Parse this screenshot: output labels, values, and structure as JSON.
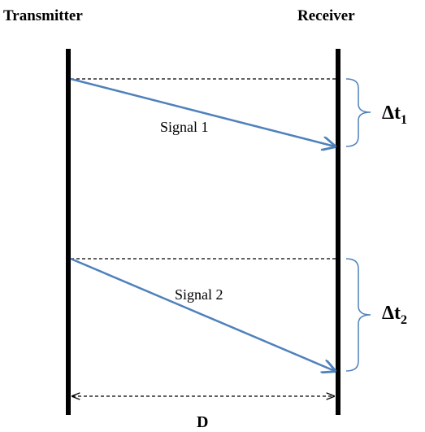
{
  "labels": {
    "transmitter": "Transmitter",
    "receiver": "Receiver",
    "signal1": "Signal 1",
    "signal2": "Signal 2",
    "distance": "D",
    "delta1_symbol": "Δt",
    "delta1_sub": "1",
    "delta2_symbol": "Δt",
    "delta2_sub": "2"
  },
  "colors": {
    "line": "#000000",
    "signal": "#4f81bd",
    "text": "#000000",
    "background": "#ffffff"
  }
}
